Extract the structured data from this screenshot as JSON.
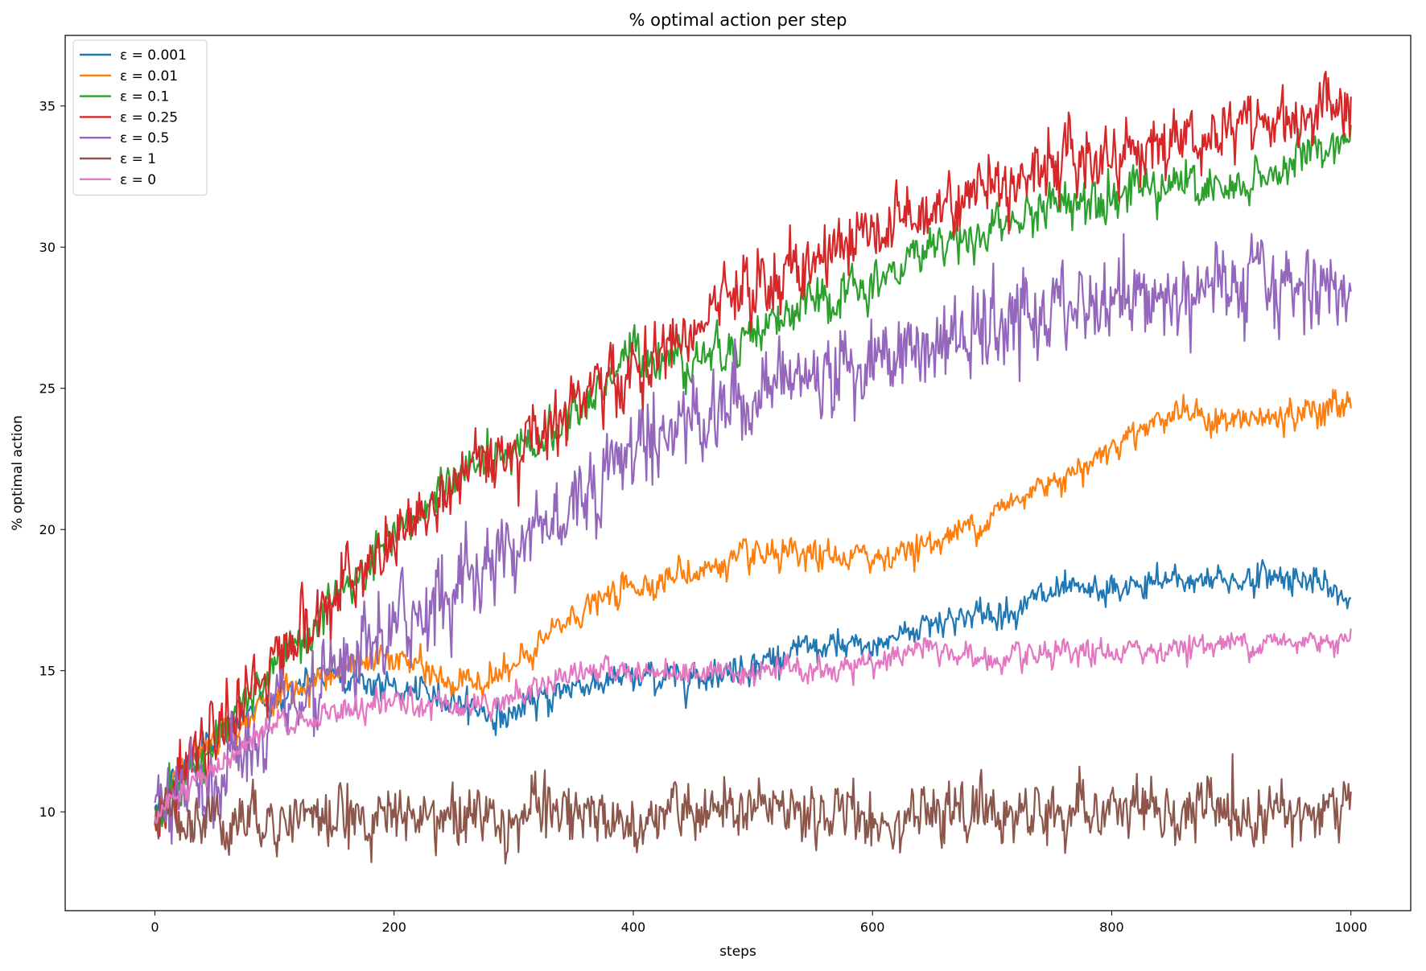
{
  "chart_data": {
    "type": "line",
    "title": "% optimal action per step",
    "xlabel": "steps",
    "ylabel": "% optimal action",
    "xlim": [
      -75,
      1050
    ],
    "ylim": [
      6.5,
      37.5
    ],
    "xticks": [
      0,
      200,
      400,
      600,
      800,
      1000
    ],
    "yticks": [
      10,
      15,
      20,
      25,
      30,
      35
    ],
    "grid": false,
    "legend_position": "top-left",
    "x_range": [
      0,
      1000
    ],
    "series": [
      {
        "name": "ε = 0.001",
        "color": "#1f77b4",
        "noise": 0.35,
        "points": [
          [
            0,
            10.0
          ],
          [
            30,
            12.0
          ],
          [
            80,
            13.5
          ],
          [
            150,
            15.0
          ],
          [
            200,
            14.3
          ],
          [
            250,
            14.0
          ],
          [
            290,
            13.3
          ],
          [
            350,
            14.5
          ],
          [
            400,
            14.7
          ],
          [
            450,
            14.8
          ],
          [
            480,
            15.0
          ],
          [
            550,
            15.8
          ],
          [
            600,
            15.8
          ],
          [
            650,
            16.8
          ],
          [
            700,
            17.0
          ],
          [
            750,
            17.7
          ],
          [
            800,
            17.8
          ],
          [
            850,
            18.2
          ],
          [
            900,
            18.2
          ],
          [
            950,
            18.4
          ],
          [
            1000,
            17.5
          ]
        ]
      },
      {
        "name": "ε = 0.01",
        "color": "#ff7f0e",
        "noise": 0.35,
        "points": [
          [
            0,
            10.0
          ],
          [
            40,
            12.5
          ],
          [
            100,
            14.0
          ],
          [
            150,
            15.0
          ],
          [
            200,
            15.5
          ],
          [
            250,
            14.5
          ],
          [
            300,
            15.0
          ],
          [
            350,
            17.0
          ],
          [
            400,
            18.0
          ],
          [
            450,
            18.5
          ],
          [
            500,
            19.0
          ],
          [
            550,
            19.0
          ],
          [
            600,
            19.0
          ],
          [
            650,
            19.5
          ],
          [
            700,
            20.5
          ],
          [
            750,
            21.8
          ],
          [
            780,
            22.3
          ],
          [
            800,
            23.0
          ],
          [
            850,
            24.2
          ],
          [
            900,
            23.8
          ],
          [
            950,
            24.0
          ],
          [
            1000,
            24.5
          ]
        ]
      },
      {
        "name": "ε = 0.1",
        "color": "#2ca02c",
        "noise": 0.55,
        "points": [
          [
            0,
            10.0
          ],
          [
            50,
            12.5
          ],
          [
            100,
            15.0
          ],
          [
            150,
            17.5
          ],
          [
            200,
            19.5
          ],
          [
            250,
            22.0
          ],
          [
            300,
            22.5
          ],
          [
            350,
            24.0
          ],
          [
            400,
            26.3
          ],
          [
            450,
            26.0
          ],
          [
            500,
            27.0
          ],
          [
            550,
            28.0
          ],
          [
            600,
            28.5
          ],
          [
            650,
            30.2
          ],
          [
            700,
            30.5
          ],
          [
            750,
            31.5
          ],
          [
            800,
            32.0
          ],
          [
            850,
            32.3
          ],
          [
            900,
            31.8
          ],
          [
            950,
            33.0
          ],
          [
            1000,
            34.0
          ]
        ]
      },
      {
        "name": "ε = 0.25",
        "color": "#d62728",
        "noise": 0.8,
        "points": [
          [
            0,
            10.0
          ],
          [
            50,
            12.5
          ],
          [
            100,
            15.5
          ],
          [
            150,
            17.5
          ],
          [
            200,
            19.5
          ],
          [
            250,
            21.5
          ],
          [
            300,
            23.0
          ],
          [
            350,
            24.5
          ],
          [
            400,
            25.5
          ],
          [
            450,
            27.0
          ],
          [
            500,
            28.5
          ],
          [
            550,
            29.5
          ],
          [
            600,
            30.5
          ],
          [
            650,
            31.5
          ],
          [
            700,
            32.2
          ],
          [
            750,
            33.0
          ],
          [
            800,
            33.3
          ],
          [
            850,
            33.8
          ],
          [
            900,
            34.2
          ],
          [
            950,
            34.6
          ],
          [
            1000,
            35.0
          ]
        ]
      },
      {
        "name": "ε = 0.5",
        "color": "#9467bd",
        "noise": 1.0,
        "points": [
          [
            0,
            10.0
          ],
          [
            50,
            11.0
          ],
          [
            100,
            13.0
          ],
          [
            150,
            14.5
          ],
          [
            200,
            16.5
          ],
          [
            250,
            18.0
          ],
          [
            300,
            19.5
          ],
          [
            350,
            21.0
          ],
          [
            400,
            23.0
          ],
          [
            450,
            24.0
          ],
          [
            500,
            24.8
          ],
          [
            550,
            25.5
          ],
          [
            600,
            26.0
          ],
          [
            650,
            26.5
          ],
          [
            700,
            27.0
          ],
          [
            750,
            27.7
          ],
          [
            800,
            28.0
          ],
          [
            850,
            28.3
          ],
          [
            900,
            28.5
          ],
          [
            950,
            28.6
          ],
          [
            1000,
            28.7
          ]
        ]
      },
      {
        "name": "ε = 1",
        "color": "#8c564b",
        "noise": 0.7,
        "points": [
          [
            0,
            9.8
          ],
          [
            1000,
            10.0
          ]
        ]
      },
      {
        "name": "ε = 0",
        "color": "#e377c2",
        "noise": 0.3,
        "points": [
          [
            0,
            10.0
          ],
          [
            50,
            11.5
          ],
          [
            100,
            13.0
          ],
          [
            150,
            13.5
          ],
          [
            200,
            13.8
          ],
          [
            250,
            13.8
          ],
          [
            300,
            14.0
          ],
          [
            350,
            15.0
          ],
          [
            400,
            15.0
          ],
          [
            450,
            15.0
          ],
          [
            500,
            15.0
          ],
          [
            550,
            15.0
          ],
          [
            600,
            15.3
          ],
          [
            650,
            15.8
          ],
          [
            700,
            15.3
          ],
          [
            750,
            15.5
          ],
          [
            800,
            15.6
          ],
          [
            850,
            15.8
          ],
          [
            900,
            16.0
          ],
          [
            950,
            16.0
          ],
          [
            1000,
            16.2
          ]
        ]
      }
    ]
  }
}
